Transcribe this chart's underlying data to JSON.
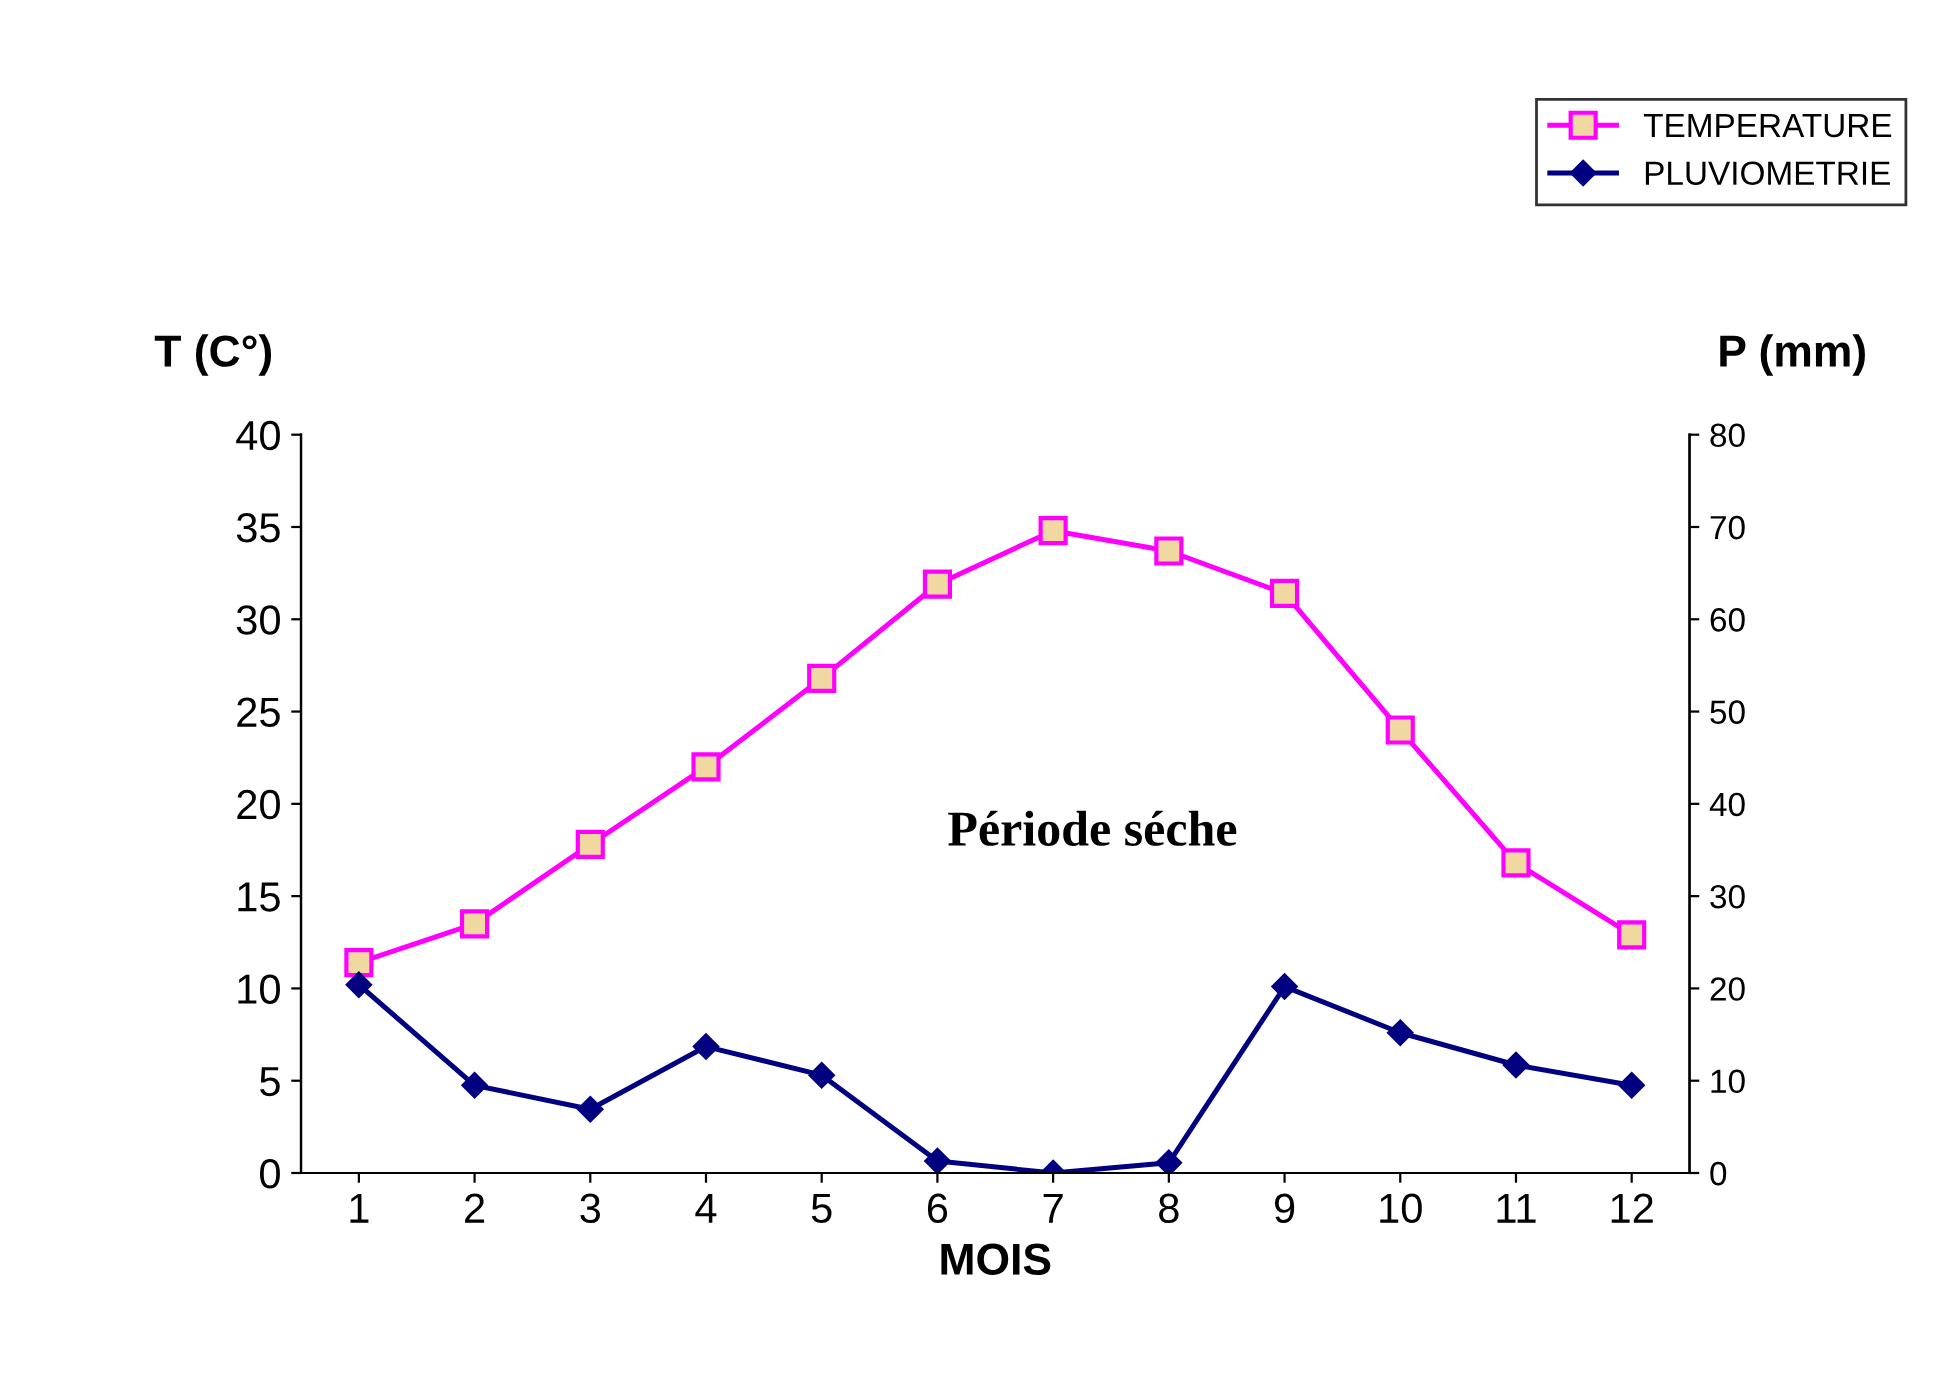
{
  "chart_data": {
    "type": "line",
    "ylabel": "T (C°)",
    "y2label": "P (mm)",
    "xlabel": "MOIS",
    "categories": [
      "1",
      "2",
      "3",
      "4",
      "5",
      "6",
      "7",
      "8",
      "9",
      "10",
      "11",
      "12"
    ],
    "series": [
      {
        "name": "TEMPERATURE",
        "color": "#ff00ff",
        "marker": "square",
        "values": [
          11.4,
          13.5,
          17.8,
          22.0,
          26.8,
          31.9,
          34.8,
          33.7,
          31.4,
          24.0,
          16.8,
          12.9
        ]
      },
      {
        "name": "PLUVIOMETRIE",
        "color": "#000080",
        "marker": "diamond",
        "axis": "y2",
        "values": [
          20.4,
          9.5,
          6.9,
          13.7,
          10.6,
          1.3,
          0,
          1.1,
          20.2,
          15.2,
          11.7,
          9.5
        ]
      }
    ],
    "ylim": [
      0,
      40
    ],
    "yticks": [
      0,
      5,
      10,
      15,
      20,
      25,
      30,
      35,
      40
    ],
    "y2lim": [
      0,
      80
    ],
    "y2ticks": [
      0,
      10,
      20,
      30,
      40,
      50,
      60,
      70,
      80
    ],
    "annotations": [
      "Période séche"
    ],
    "legend": "top right",
    "grid": false
  }
}
